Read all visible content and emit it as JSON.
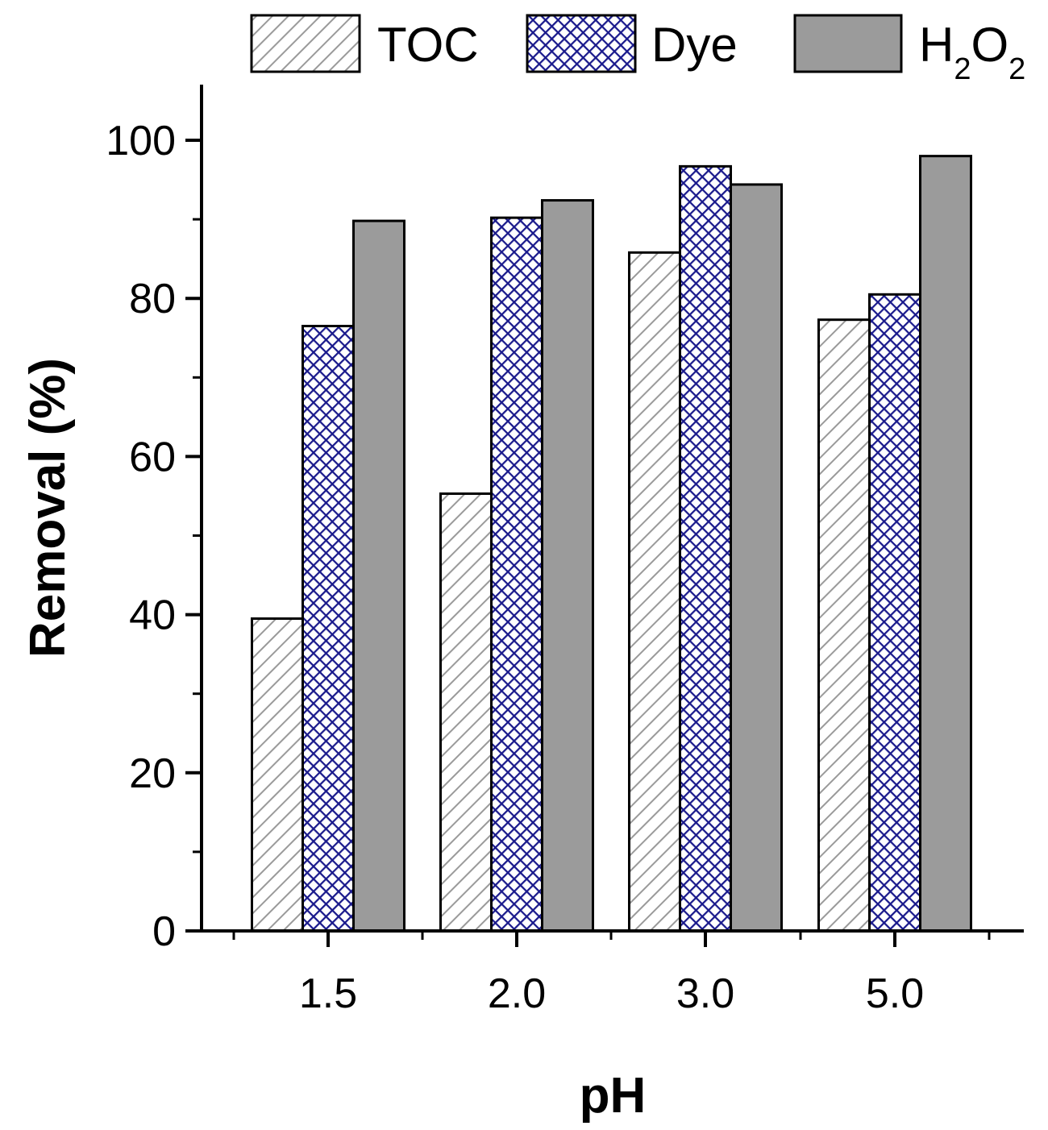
{
  "chart_data": {
    "type": "bar",
    "title": "",
    "xlabel": "pH",
    "ylabel": "Removal (%)",
    "categories": [
      "1.5",
      "2.0",
      "3.0",
      "5.0"
    ],
    "ylim": [
      0,
      107
    ],
    "yticks": [
      "0",
      "20",
      "40",
      "60",
      "80",
      "100"
    ],
    "yticks_values": [
      0,
      20,
      40,
      60,
      80,
      100
    ],
    "grid": false,
    "legend_position": "top",
    "series": [
      {
        "name": "TOC",
        "values": [
          39.5,
          55.3,
          85.8,
          77.3
        ],
        "color": "#ffffff",
        "pattern": "hatch",
        "pattern_color": "#9a9a9a"
      },
      {
        "name": "Dye",
        "values": [
          76.5,
          90.2,
          96.7,
          80.5
        ],
        "color": "#ffffff",
        "pattern": "crosshatch",
        "pattern_color": "#1a1a8c"
      },
      {
        "name": "H2O2",
        "values": [
          89.8,
          92.4,
          94.4,
          98.0
        ],
        "color": "#9b9b9b",
        "pattern": "solid"
      }
    ],
    "legend_labels": {
      "toc": "TOC",
      "dye": "Dye",
      "h2o2_main_h": "H",
      "h2o2_sub_1": "2",
      "h2o2_main_o": "O",
      "h2o2_sub_2": "2"
    }
  }
}
